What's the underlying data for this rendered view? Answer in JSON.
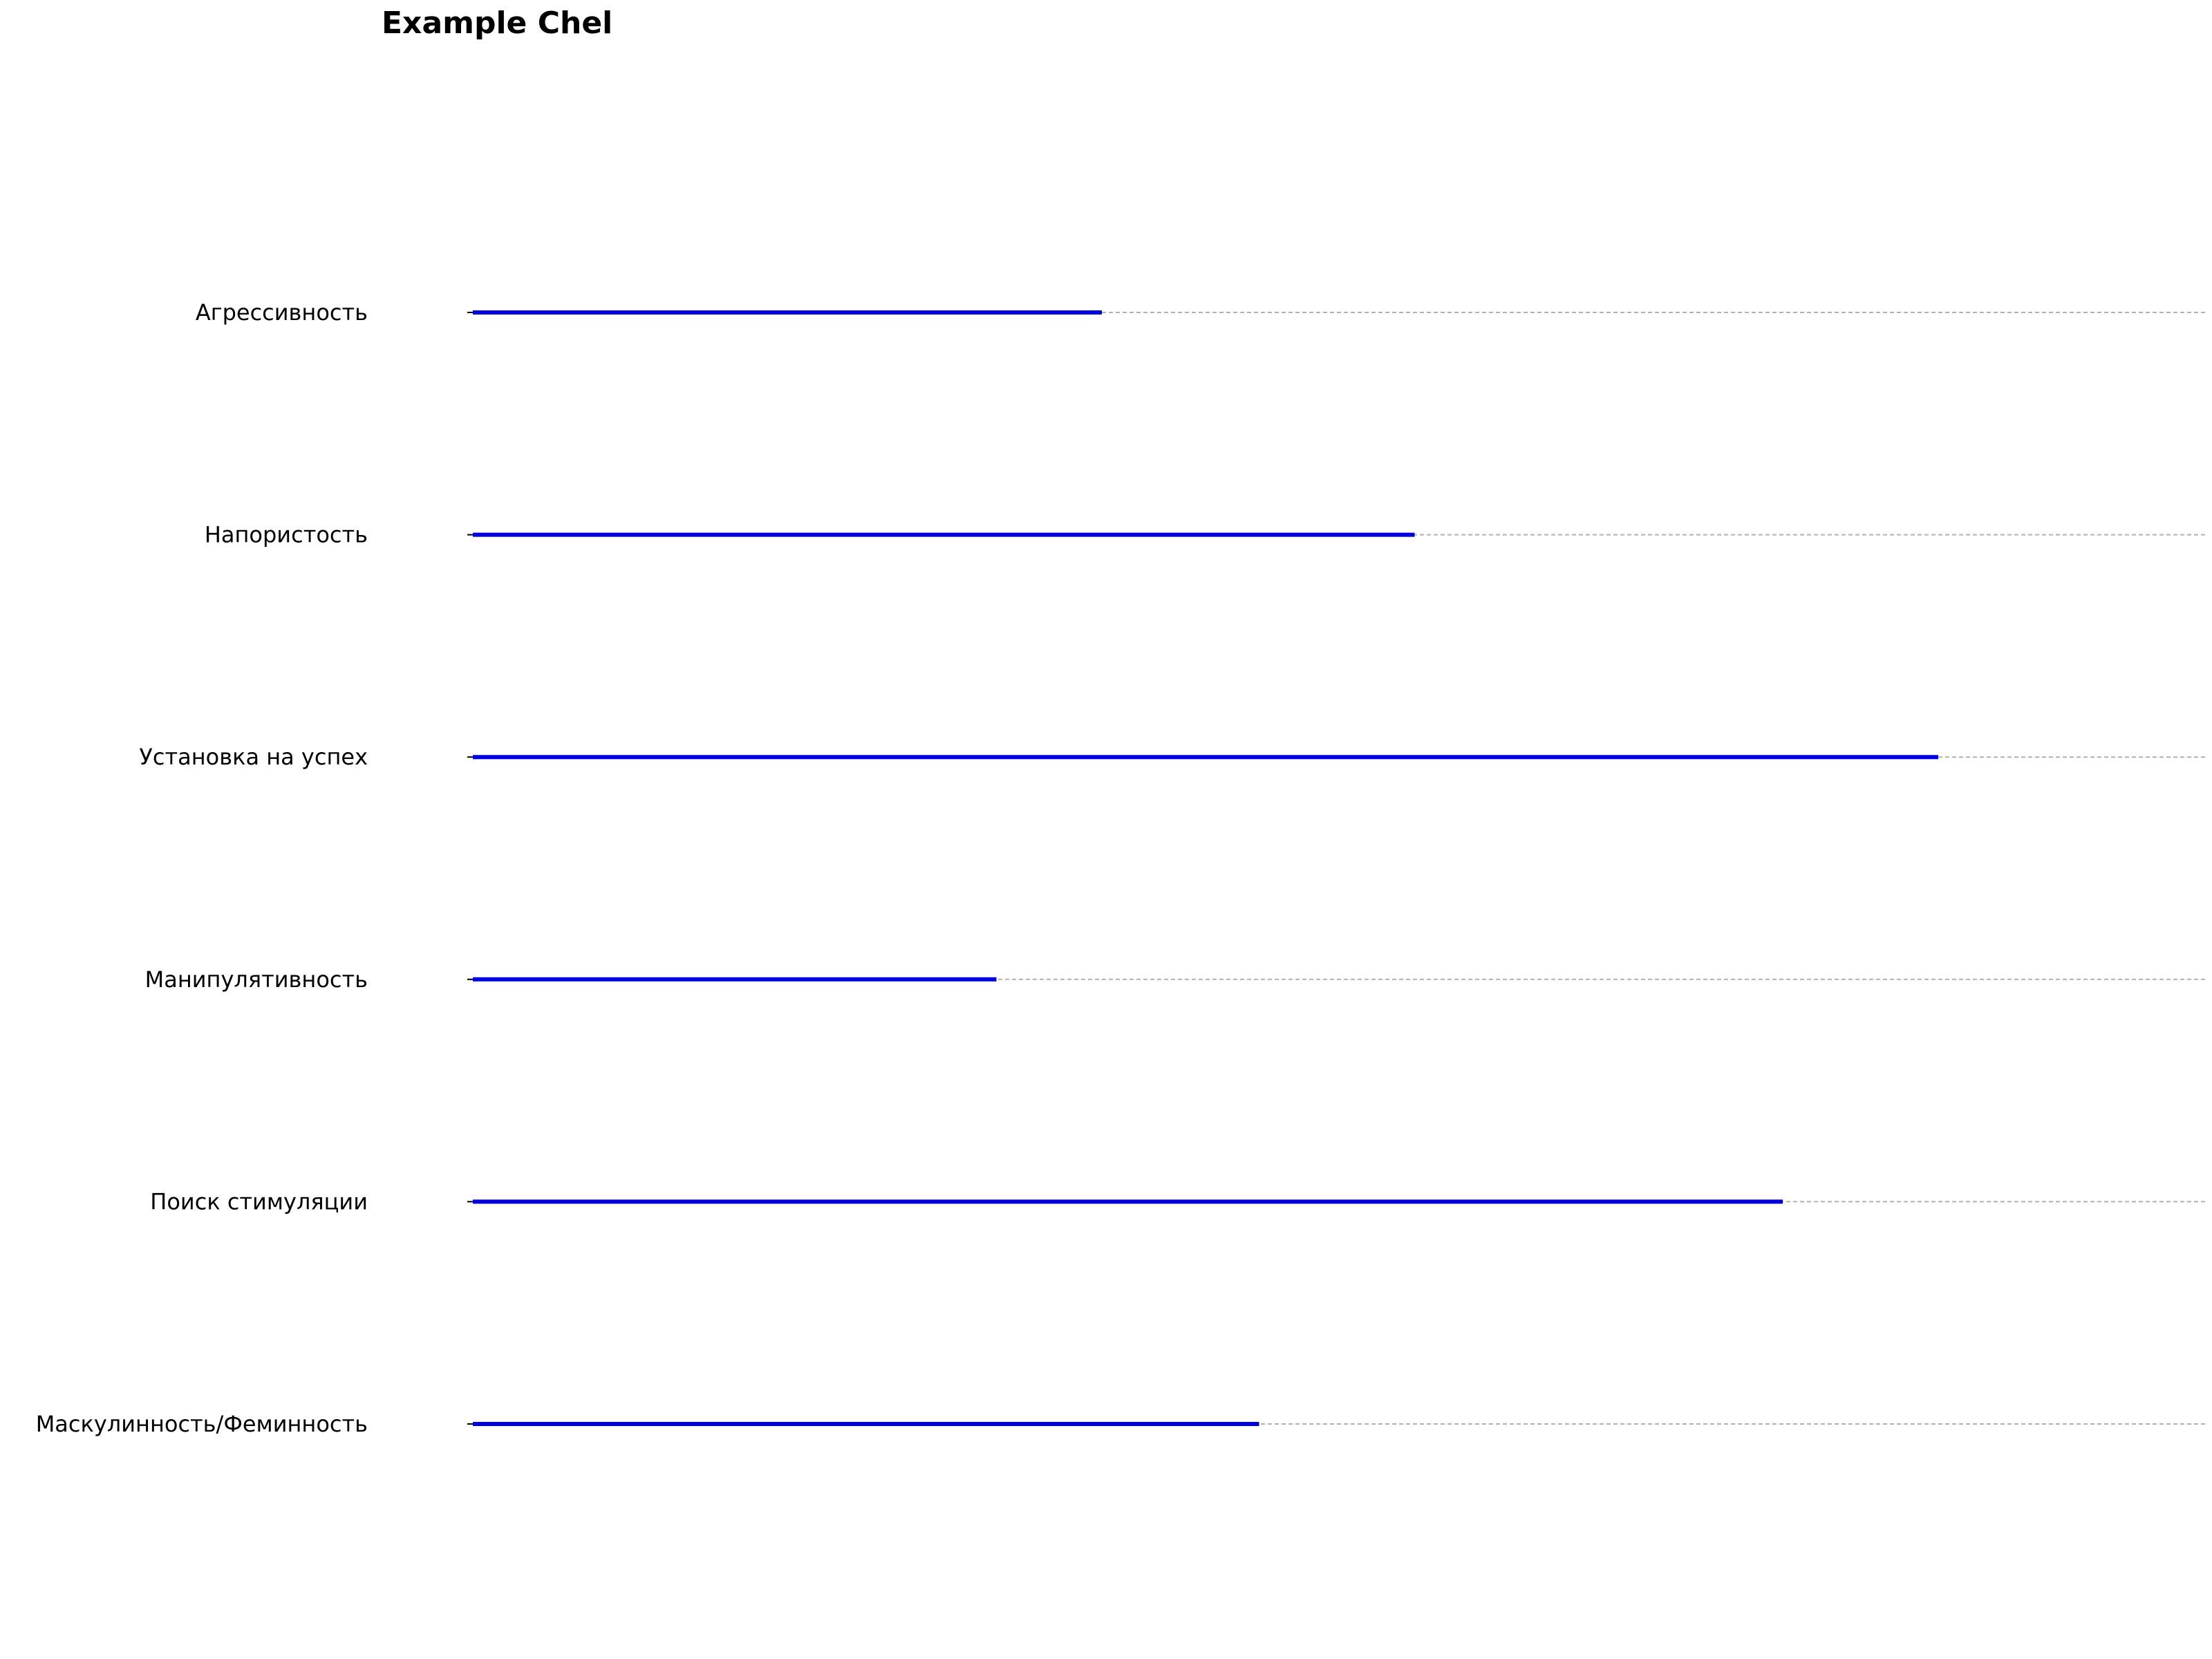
{
  "chart_data": {
    "type": "bar",
    "orientation": "horizontal",
    "title": "Example Chel",
    "categories": [
      "Агрессивность",
      "Напористость",
      "Установка на успех",
      "Манипулятивность",
      "Поиск стимуляции",
      "Маскулинность/Феминность"
    ],
    "values": [
      0.364,
      0.545,
      0.848,
      0.303,
      0.758,
      0.455
    ],
    "xlim": [
      0,
      1
    ],
    "xlabel": "",
    "ylabel": "",
    "grid": true,
    "bar_color": "#0000dd",
    "grid_color": "#b0b0b0"
  }
}
